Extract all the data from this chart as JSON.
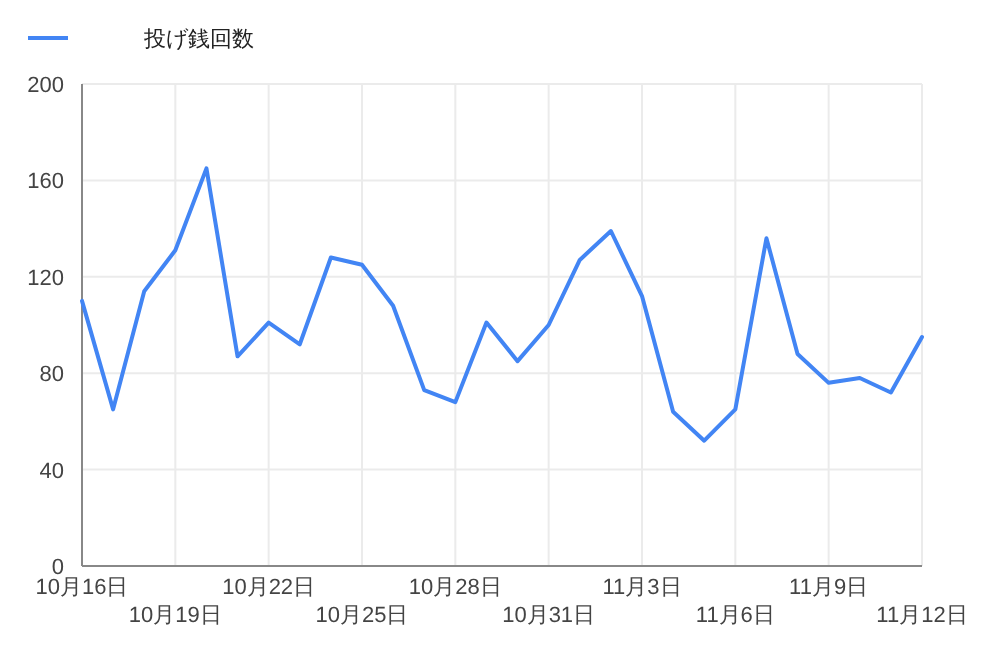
{
  "chart_data": {
    "type": "line",
    "categories": [
      "10月16日",
      null,
      null,
      "10月19日",
      null,
      null,
      "10月22日",
      null,
      null,
      "10月25日",
      null,
      null,
      "10月28日",
      null,
      null,
      "10月31日",
      null,
      null,
      "11月3日",
      null,
      null,
      "11月6日",
      null,
      null,
      "11月9日",
      null,
      null,
      "11月12日"
    ],
    "series": [
      {
        "name": "投げ銭回数",
        "color": "#4285f4",
        "values": [
          110,
          65,
          114,
          131,
          165,
          87,
          101,
          92,
          128,
          125,
          108,
          73,
          68,
          101,
          85,
          100,
          127,
          139,
          112,
          64,
          52,
          65,
          136,
          88,
          76,
          78,
          72,
          95
        ]
      }
    ],
    "ylim": [
      0,
      200
    ],
    "yticks": [
      0,
      40,
      80,
      120,
      160,
      200
    ],
    "grid": true,
    "legend": "top left",
    "marker": "none",
    "line_style": "solid"
  }
}
